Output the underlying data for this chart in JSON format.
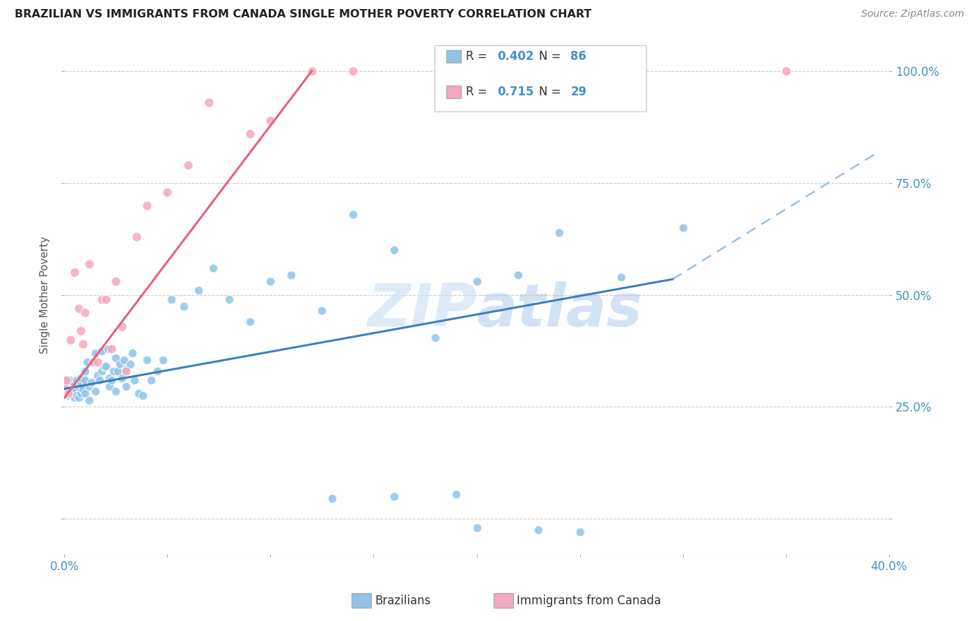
{
  "title": "BRAZILIAN VS IMMIGRANTS FROM CANADA SINGLE MOTHER POVERTY CORRELATION CHART",
  "source": "Source: ZipAtlas.com",
  "ylabel": "Single Mother Poverty",
  "xlim": [
    0.0,
    0.4
  ],
  "ylim": [
    -0.08,
    1.08
  ],
  "xticks": [
    0.0,
    0.05,
    0.1,
    0.15,
    0.2,
    0.25,
    0.3,
    0.35,
    0.4
  ],
  "xticklabels": [
    "0.0%",
    "",
    "",
    "",
    "",
    "",
    "",
    "",
    "40.0%"
  ],
  "yticks": [
    0.0,
    0.25,
    0.5,
    0.75,
    1.0
  ],
  "yticklabels": [
    "",
    "25.0%",
    "50.0%",
    "75.0%",
    "100.0%"
  ],
  "watermark": "ZIPatlas",
  "color_blue": "#8fc4e8",
  "color_pink": "#f4a8c0",
  "color_blue_line": "#3a7fc1",
  "color_pink_line": "#e8607a",
  "color_dashed_line": "#9dbfdd",
  "legend_label1": "Brazilians",
  "legend_label2": "Immigrants from Canada",
  "blue_scatter_x": [
    0.0,
    0.0,
    0.0,
    0.001,
    0.001,
    0.002,
    0.002,
    0.002,
    0.003,
    0.003,
    0.003,
    0.004,
    0.004,
    0.004,
    0.005,
    0.005,
    0.005,
    0.006,
    0.006,
    0.007,
    0.007,
    0.008,
    0.008,
    0.008,
    0.009,
    0.01,
    0.01,
    0.01,
    0.011,
    0.012,
    0.012,
    0.013,
    0.014,
    0.015,
    0.015,
    0.016,
    0.017,
    0.018,
    0.018,
    0.019,
    0.02,
    0.021,
    0.022,
    0.022,
    0.023,
    0.024,
    0.025,
    0.025,
    0.026,
    0.027,
    0.028,
    0.029,
    0.03,
    0.03,
    0.032,
    0.033,
    0.034,
    0.036,
    0.038,
    0.04,
    0.042,
    0.045,
    0.048,
    0.052,
    0.058,
    0.065,
    0.072,
    0.08,
    0.09,
    0.1,
    0.11,
    0.125,
    0.14,
    0.16,
    0.18,
    0.2,
    0.22,
    0.24,
    0.27,
    0.3,
    0.2,
    0.23,
    0.25,
    0.16,
    0.19,
    0.13
  ],
  "blue_scatter_y": [
    0.29,
    0.295,
    0.3,
    0.285,
    0.3,
    0.275,
    0.29,
    0.305,
    0.28,
    0.295,
    0.31,
    0.275,
    0.29,
    0.305,
    0.27,
    0.285,
    0.3,
    0.275,
    0.31,
    0.27,
    0.295,
    0.28,
    0.3,
    0.315,
    0.29,
    0.28,
    0.31,
    0.33,
    0.35,
    0.265,
    0.295,
    0.305,
    0.35,
    0.37,
    0.285,
    0.32,
    0.31,
    0.33,
    0.375,
    0.34,
    0.34,
    0.38,
    0.295,
    0.315,
    0.31,
    0.33,
    0.36,
    0.285,
    0.33,
    0.345,
    0.315,
    0.355,
    0.335,
    0.295,
    0.345,
    0.37,
    0.31,
    0.28,
    0.275,
    0.355,
    0.31,
    0.33,
    0.355,
    0.49,
    0.475,
    0.51,
    0.56,
    0.49,
    0.44,
    0.53,
    0.545,
    0.465,
    0.68,
    0.6,
    0.405,
    0.53,
    0.545,
    0.64,
    0.54,
    0.65,
    -0.02,
    -0.025,
    -0.03,
    0.05,
    0.055,
    0.045
  ],
  "pink_scatter_x": [
    0.0,
    0.0,
    0.001,
    0.002,
    0.003,
    0.005,
    0.007,
    0.008,
    0.009,
    0.01,
    0.012,
    0.014,
    0.016,
    0.018,
    0.02,
    0.023,
    0.025,
    0.028,
    0.03,
    0.035,
    0.04,
    0.05,
    0.06,
    0.07,
    0.09,
    0.1,
    0.12,
    0.14,
    0.35
  ],
  "pink_scatter_y": [
    0.295,
    0.31,
    0.31,
    0.28,
    0.4,
    0.55,
    0.47,
    0.42,
    0.39,
    0.46,
    0.57,
    0.35,
    0.35,
    0.49,
    0.49,
    0.38,
    0.53,
    0.43,
    0.33,
    0.63,
    0.7,
    0.73,
    0.79,
    0.93,
    0.86,
    0.89,
    1.0,
    1.0,
    1.0
  ],
  "blue_line_x": [
    0.0,
    0.295
  ],
  "blue_line_y": [
    0.29,
    0.535
  ],
  "pink_line_x": [
    0.0,
    0.12
  ],
  "pink_line_y": [
    0.27,
    1.0
  ],
  "dashed_line_x": [
    0.295,
    0.395
  ],
  "dashed_line_y": [
    0.535,
    0.82
  ]
}
